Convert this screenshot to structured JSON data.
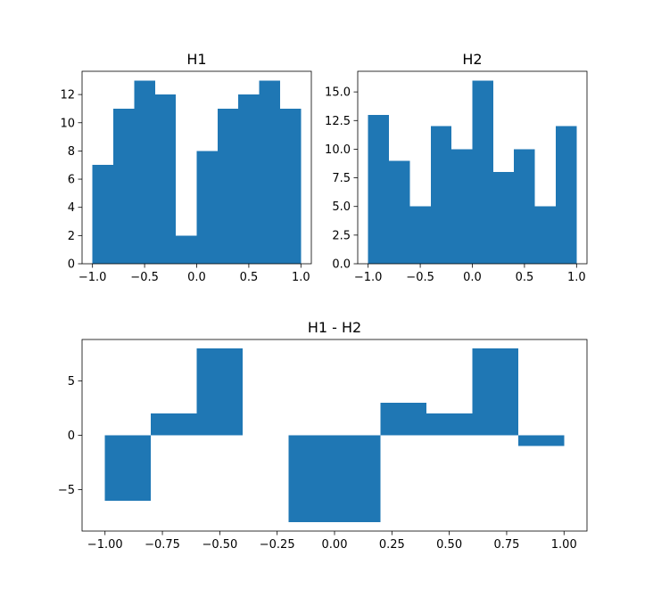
{
  "chart_data": [
    {
      "type": "bar",
      "title": "H1",
      "bin_edges": [
        -1.0,
        -0.8,
        -0.6,
        -0.4,
        -0.2,
        0.0,
        0.2,
        0.4,
        0.6,
        0.8,
        1.0
      ],
      "values": [
        7,
        11,
        13,
        12,
        2,
        8,
        11,
        12,
        13,
        11
      ],
      "xlim": [
        -1.1,
        1.1
      ],
      "ylim": [
        0,
        13.65
      ],
      "xticks": [
        -1.0,
        -0.5,
        0.0,
        0.5,
        1.0
      ],
      "xtick_labels": [
        "−1.0",
        "−0.5",
        "0.0",
        "0.5",
        "1.0"
      ],
      "yticks": [
        0,
        2,
        4,
        6,
        8,
        10,
        12
      ],
      "ytick_labels": [
        "0",
        "2",
        "4",
        "6",
        "8",
        "10",
        "12"
      ],
      "color": "#1f77b4",
      "grid": false
    },
    {
      "type": "bar",
      "title": "H2",
      "bin_edges": [
        -1.0,
        -0.8,
        -0.6,
        -0.4,
        -0.2,
        0.0,
        0.2,
        0.4,
        0.6,
        0.8,
        1.0
      ],
      "values": [
        13,
        9,
        5,
        12,
        10,
        16,
        8,
        10,
        5,
        12
      ],
      "xlim": [
        -1.1,
        1.1
      ],
      "ylim": [
        0,
        16.8
      ],
      "xticks": [
        -1.0,
        -0.5,
        0.0,
        0.5,
        1.0
      ],
      "xtick_labels": [
        "−1.0",
        "−0.5",
        "0.0",
        "0.5",
        "1.0"
      ],
      "yticks": [
        0,
        2.5,
        5,
        7.5,
        10,
        12.5,
        15
      ],
      "ytick_labels": [
        "0.0",
        "2.5",
        "5.0",
        "7.5",
        "10.0",
        "12.5",
        "15.0"
      ],
      "color": "#1f77b4",
      "grid": false
    },
    {
      "type": "bar",
      "title": "H1 - H2",
      "bin_edges": [
        -1.0,
        -0.8,
        -0.6,
        -0.4,
        -0.2,
        0.0,
        0.2,
        0.4,
        0.6,
        0.8,
        1.0
      ],
      "values": [
        -6,
        2,
        8,
        0,
        -8,
        -8,
        3,
        2,
        8,
        -1
      ],
      "xlim": [
        -1.1,
        1.1
      ],
      "ylim": [
        -8.8,
        8.8
      ],
      "xticks": [
        -1.0,
        -0.75,
        -0.5,
        -0.25,
        0.0,
        0.25,
        0.5,
        0.75,
        1.0
      ],
      "xtick_labels": [
        "−1.00",
        "−0.75",
        "−0.50",
        "−0.25",
        "0.00",
        "0.25",
        "0.50",
        "0.75",
        "1.00"
      ],
      "yticks": [
        -5,
        0,
        5
      ],
      "ytick_labels": [
        "−5",
        "0",
        "5"
      ],
      "color": "#1f77b4",
      "grid": false
    }
  ]
}
